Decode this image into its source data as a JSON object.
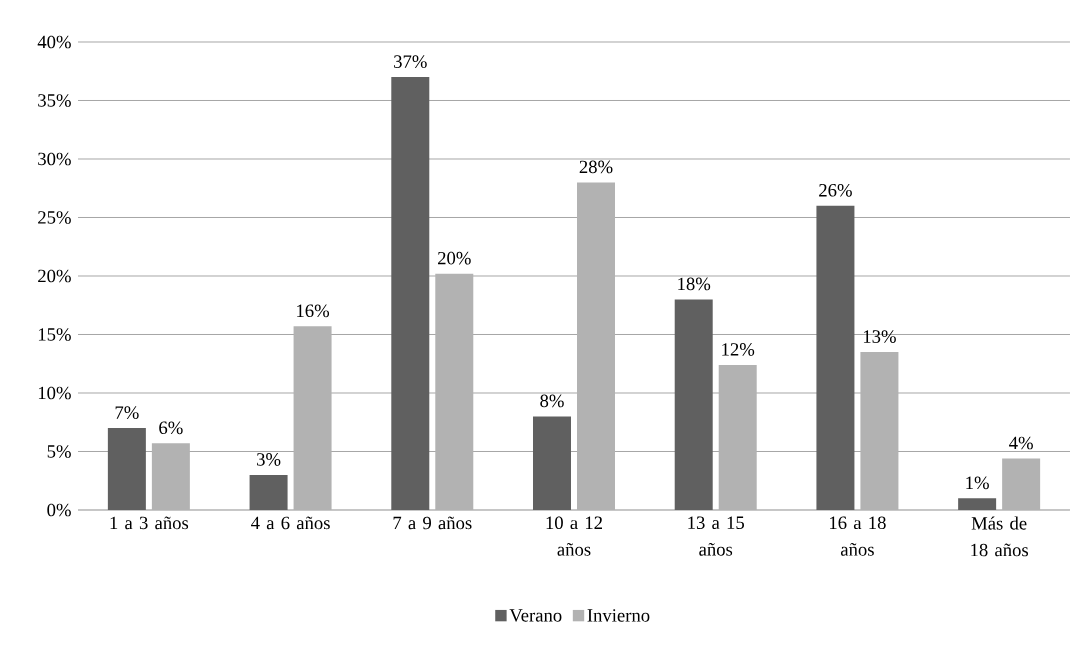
{
  "chart_data": {
    "type": "bar",
    "categories": [
      "1 a 3 años",
      "4 a 6 años",
      "7 a 9 años",
      "10 a 12 años",
      "13 a 15 años",
      "16 a 18 años",
      "Más de 18 años"
    ],
    "series": [
      {
        "name": "Verano",
        "color": "#606060",
        "values": [
          7,
          3,
          37,
          8,
          18,
          26,
          1
        ],
        "value_labels": [
          "7%",
          "3%",
          "37%",
          "8%",
          "18%",
          "26%",
          "1%"
        ]
      },
      {
        "name": "Invierno",
        "color": "#b2b2b2",
        "values": [
          5.7,
          15.7,
          20.2,
          28,
          12.4,
          13.5,
          4.4
        ],
        "value_labels": [
          "6%",
          "16%",
          "20%",
          "28%",
          "12%",
          "13%",
          "4%"
        ]
      }
    ],
    "ylim": [
      0,
      40
    ],
    "yticks": [
      {
        "value": 0,
        "label": "0%"
      },
      {
        "value": 5,
        "label": "5%"
      },
      {
        "value": 10,
        "label": "10%"
      },
      {
        "value": 15,
        "label": "15%"
      },
      {
        "value": 20,
        "label": "20%"
      },
      {
        "value": 25,
        "label": "25%"
      },
      {
        "value": 30,
        "label": "30%"
      },
      {
        "value": 35,
        "label": "35%"
      },
      {
        "value": 40,
        "label": "40%"
      }
    ],
    "grid": "y",
    "legend": "bottom"
  }
}
